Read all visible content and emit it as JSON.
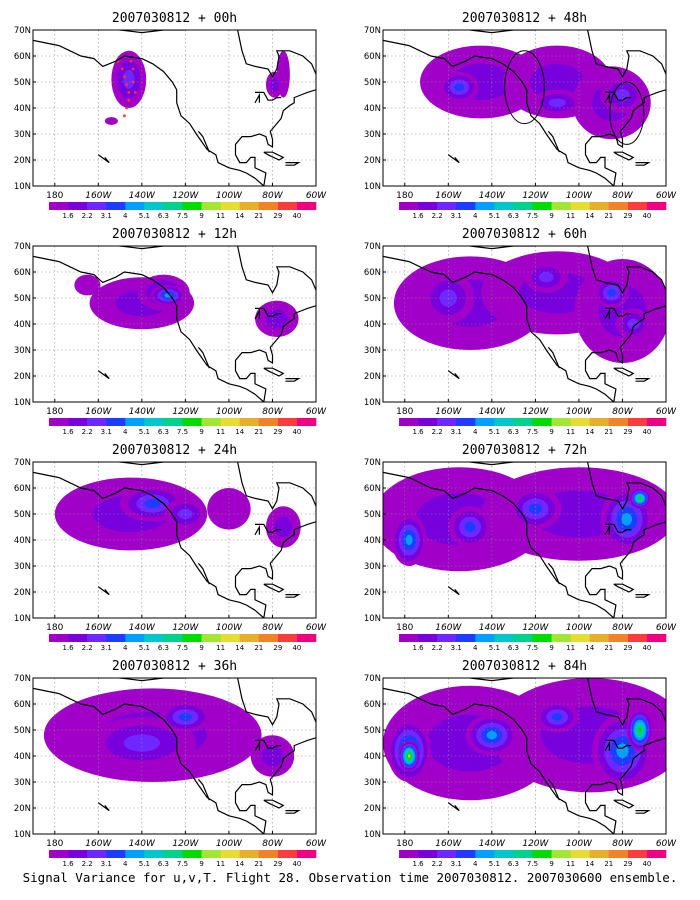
{
  "caption": "Signal Variance for u,v,T. Flight 28. Observation time 2007030812. 2007030600 ensemble.",
  "x_ticks": [
    "180",
    "160W",
    "140W",
    "120W",
    "100W",
    "80W",
    "60W"
  ],
  "y_ticks": [
    "10N",
    "20N",
    "30N",
    "40N",
    "50N",
    "60N",
    "70N"
  ],
  "colorbar": {
    "labels": [
      "1.6",
      "2.2",
      "3.1",
      "4",
      "5.1",
      "6.3",
      "7.5",
      "9",
      "11",
      "14",
      "21",
      "29",
      "40"
    ],
    "colors": [
      "#a000c8",
      "#7800dc",
      "#6e28ff",
      "#1e3cff",
      "#00a0ff",
      "#00c8c8",
      "#00d28c",
      "#00dc00",
      "#a0e632",
      "#e6dc32",
      "#e6af2d",
      "#f08228",
      "#fa3c3c",
      "#f00082"
    ]
  },
  "panels": [
    {
      "title": "2007030812 + 00h",
      "blobs": [
        [
          -146,
          51,
          8,
          11,
          3
        ],
        [
          -154,
          35,
          3,
          1.5,
          1
        ],
        [
          -75,
          53,
          3,
          9,
          1
        ],
        [
          -79,
          49,
          4,
          5,
          2
        ]
      ],
      "flight_track": true
    },
    {
      "title": "2007030812 + 48h",
      "blobs": [
        [
          -145,
          50,
          28,
          14,
          2
        ],
        [
          -110,
          50,
          25,
          14,
          2
        ],
        [
          -85,
          42,
          18,
          14,
          2
        ],
        [
          -155,
          48,
          9,
          6,
          4
        ],
        [
          -110,
          42,
          12,
          5,
          3
        ],
        [
          -80,
          45,
          10,
          7,
          3
        ]
      ],
      "circles": [
        [
          -125,
          48,
          7
        ],
        [
          -78,
          38,
          6
        ]
      ]
    },
    {
      "title": "2007030812 + 12h",
      "blobs": [
        [
          -140,
          48,
          24,
          10,
          2
        ],
        [
          -130,
          52,
          12,
          7,
          3
        ],
        [
          -128,
          51,
          8,
          4,
          5
        ],
        [
          -78,
          42,
          10,
          7,
          2
        ],
        [
          -165,
          55,
          6,
          4,
          1
        ]
      ]
    },
    {
      "title": "2007030812 + 60h",
      "blobs": [
        [
          -150,
          48,
          35,
          18,
          2
        ],
        [
          -110,
          52,
          35,
          16,
          2
        ],
        [
          -80,
          45,
          22,
          20,
          2
        ],
        [
          -160,
          50,
          12,
          10,
          3
        ],
        [
          -115,
          58,
          10,
          6,
          3
        ],
        [
          -85,
          52,
          8,
          6,
          4
        ],
        [
          -75,
          40,
          8,
          6,
          3
        ]
      ]
    },
    {
      "title": "2007030812 + 24h",
      "blobs": [
        [
          -145,
          50,
          35,
          14,
          2
        ],
        [
          -135,
          54,
          15,
          7,
          4
        ],
        [
          -120,
          50,
          10,
          6,
          3
        ],
        [
          -100,
          52,
          10,
          8,
          1
        ],
        [
          -75,
          45,
          8,
          8,
          2
        ]
      ]
    },
    {
      "title": "2007030812 + 72h",
      "blobs": [
        [
          -155,
          48,
          40,
          20,
          2
        ],
        [
          -100,
          50,
          45,
          18,
          2
        ],
        [
          -178,
          40,
          8,
          10,
          5
        ],
        [
          -150,
          45,
          10,
          8,
          4
        ],
        [
          -120,
          52,
          12,
          8,
          4
        ],
        [
          -78,
          48,
          12,
          12,
          5
        ],
        [
          -72,
          56,
          5,
          4,
          8
        ]
      ]
    },
    {
      "title": "2007030812 + 36h",
      "blobs": [
        [
          -135,
          48,
          50,
          18,
          2
        ],
        [
          -140,
          45,
          25,
          10,
          3
        ],
        [
          -120,
          55,
          12,
          6,
          4
        ],
        [
          -80,
          40,
          10,
          8,
          2
        ]
      ]
    },
    {
      "title": "2007030812 + 84h",
      "blobs": [
        [
          -150,
          45,
          40,
          22,
          2
        ],
        [
          -95,
          48,
          45,
          22,
          2
        ],
        [
          -178,
          42,
          10,
          12,
          6
        ],
        [
          -178,
          40,
          5,
          6,
          9
        ],
        [
          -140,
          48,
          12,
          8,
          5
        ],
        [
          -80,
          42,
          14,
          14,
          5
        ],
        [
          -72,
          50,
          6,
          8,
          8
        ],
        [
          -110,
          55,
          10,
          6,
          4
        ]
      ]
    }
  ]
}
